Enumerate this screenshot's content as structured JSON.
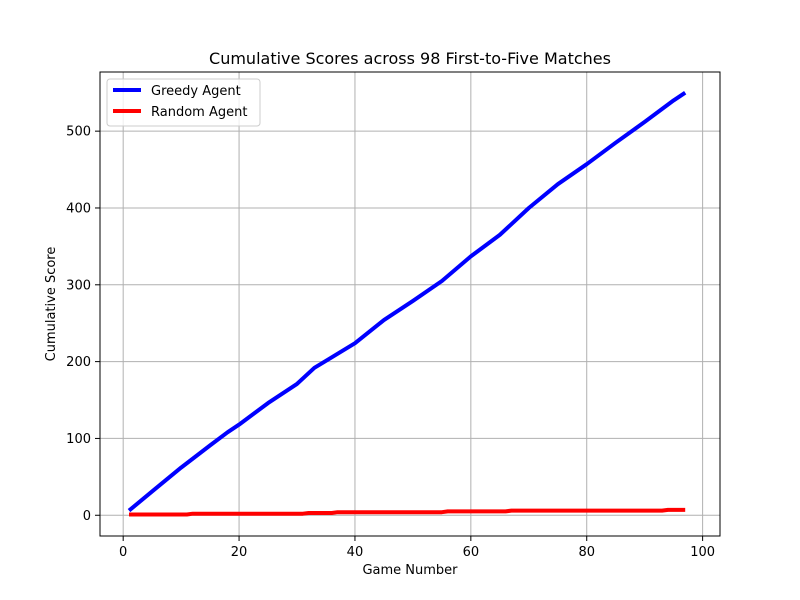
{
  "chart_data": {
    "type": "line",
    "title": "Cumulative Scores across 98 First-to-Five Matches",
    "xlabel": "Game Number",
    "ylabel": "Cumulative Score",
    "xlim": [
      -4,
      103
    ],
    "ylim": [
      -27,
      577
    ],
    "xticks": [
      0,
      20,
      40,
      60,
      80,
      100
    ],
    "yticks": [
      0,
      100,
      200,
      300,
      400,
      500
    ],
    "grid": true,
    "legend_position": "top-left",
    "series": [
      {
        "name": "Greedy Agent",
        "color": "#0000ff",
        "x": [
          1,
          5,
          10,
          15,
          18,
          20,
          25,
          30,
          33,
          35,
          40,
          45,
          50,
          55,
          60,
          65,
          70,
          75,
          80,
          85,
          90,
          95,
          97
        ],
        "y": [
          6,
          31,
          62,
          91,
          108,
          118,
          146,
          171,
          192,
          201,
          224,
          254,
          279,
          305,
          337,
          365,
          400,
          431,
          457,
          485,
          512,
          540,
          550
        ]
      },
      {
        "name": "Random Agent",
        "color": "#ff0000",
        "x": [
          1,
          11,
          12,
          31,
          32,
          36,
          37,
          55,
          56,
          66,
          67,
          93,
          94,
          97
        ],
        "y": [
          1,
          1,
          2,
          2,
          3,
          3,
          4,
          4,
          5,
          5,
          6,
          6,
          7,
          7
        ]
      }
    ]
  }
}
